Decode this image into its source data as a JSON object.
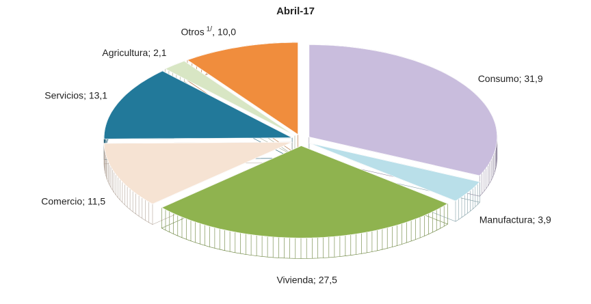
{
  "chart_data": {
    "type": "pie",
    "title": "Abril-17",
    "categories": [
      "Consumo",
      "Manufactura",
      "Vivienda",
      "Comercio",
      "Servicios",
      "Agricultura",
      "Otros"
    ],
    "category_notes": [
      null,
      null,
      null,
      null,
      null,
      null,
      "1/"
    ],
    "label_separators": [
      "; ",
      "; ",
      "; ",
      "; ",
      "; ",
      "; ",
      ", "
    ],
    "values": [
      31.9,
      3.9,
      27.5,
      11.5,
      13.1,
      2.1,
      10.0
    ],
    "value_labels": [
      "31,9",
      "3,9",
      "27,5",
      "11,5",
      "13,1",
      "2,1",
      "10,0"
    ],
    "colors": [
      "#c9bddd",
      "#b9dfe9",
      "#8fb34f",
      "#f6e3d3",
      "#22799a",
      "#d8e6c4",
      "#f08d3d"
    ]
  }
}
